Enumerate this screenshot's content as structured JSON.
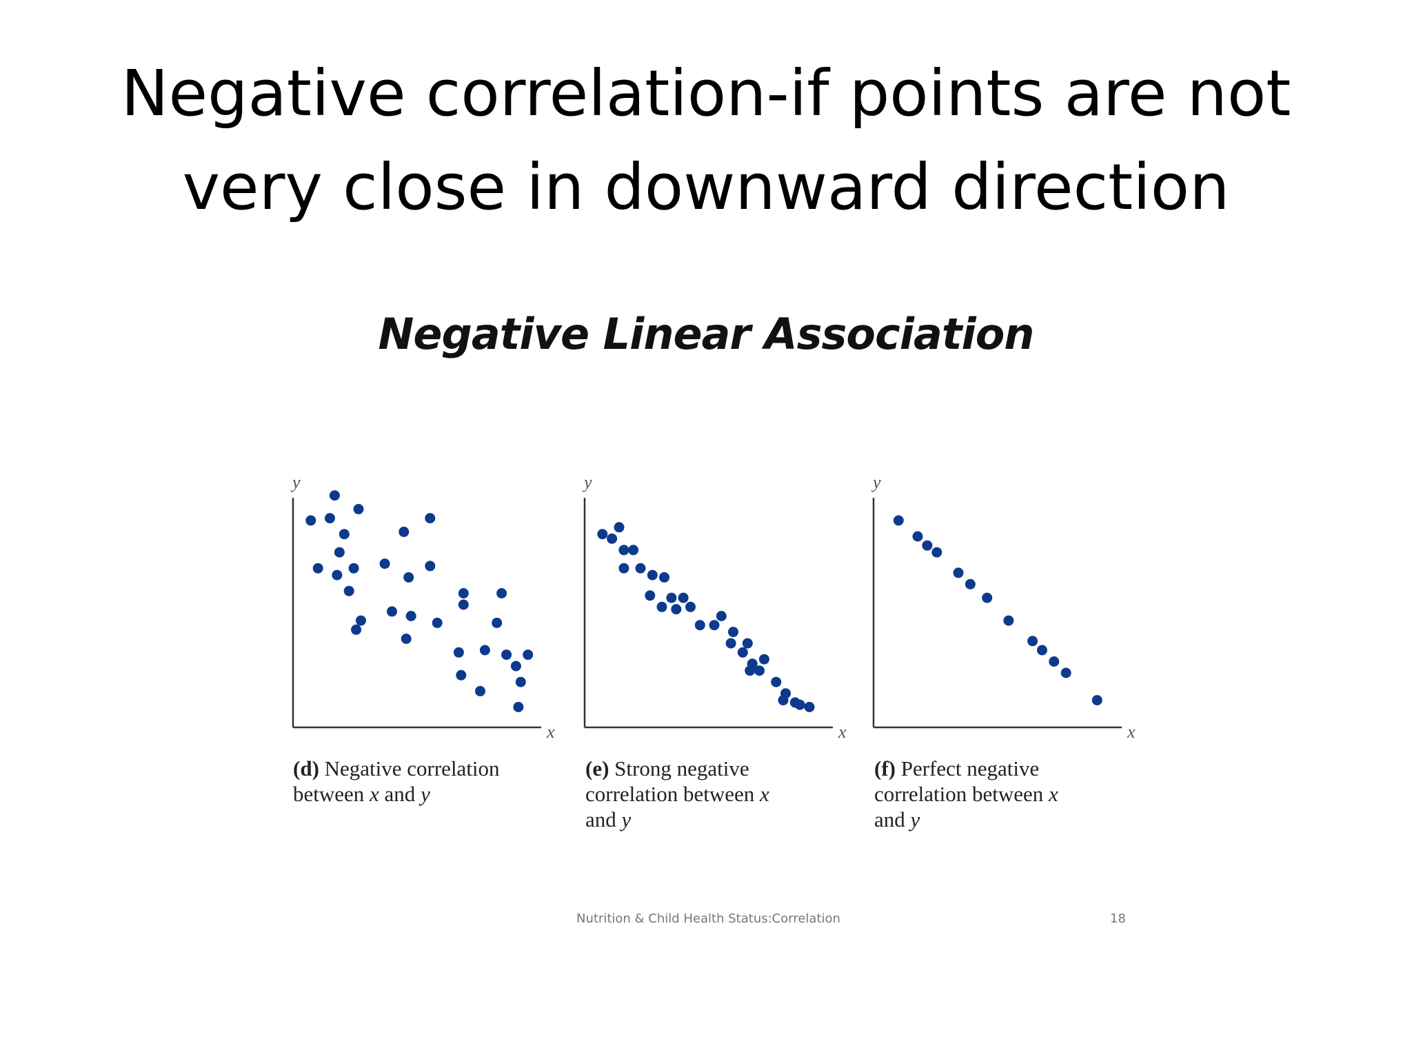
{
  "slide": {
    "title_line1": "Negative correlation-if points are not",
    "title_line2": "very close in downward direction",
    "figure_heading": "Negative Linear Association",
    "footer_left": "Nutrition & Child Health Status:Correlation",
    "footer_right": "18"
  },
  "colors": {
    "point": "#0d3a8c",
    "axis": "#333333",
    "axis_label": "#555555"
  },
  "chart_data": [
    {
      "type": "scatter",
      "panel": "d",
      "caption_tag": "(d)",
      "caption_pre": "Negative correlation between",
      "caption_x": "x",
      "caption_and": "and",
      "caption_y": "y",
      "xlabel": "x",
      "ylabel": "y",
      "xlim": [
        0,
        100
      ],
      "ylim": [
        0,
        100
      ],
      "points": [
        [
          4,
          87
        ],
        [
          12,
          88
        ],
        [
          14,
          98
        ],
        [
          18,
          81
        ],
        [
          24,
          92
        ],
        [
          16,
          73
        ],
        [
          7,
          66
        ],
        [
          15,
          63
        ],
        [
          22,
          66
        ],
        [
          20,
          56
        ],
        [
          25,
          43
        ],
        [
          23,
          39
        ],
        [
          35,
          68
        ],
        [
          38,
          47
        ],
        [
          43,
          82
        ],
        [
          45,
          62
        ],
        [
          44,
          35
        ],
        [
          46,
          45
        ],
        [
          54,
          88
        ],
        [
          54,
          67
        ],
        [
          57,
          42
        ],
        [
          68,
          55
        ],
        [
          68,
          50
        ],
        [
          66,
          29
        ],
        [
          67,
          19
        ],
        [
          77,
          30
        ],
        [
          75,
          12
        ],
        [
          84,
          55
        ],
        [
          82,
          42
        ],
        [
          86,
          28
        ],
        [
          90,
          23
        ],
        [
          92,
          16
        ],
        [
          95,
          28
        ],
        [
          91,
          5
        ]
      ]
    },
    {
      "type": "scatter",
      "panel": "e",
      "caption_tag": "(e)",
      "caption_pre": "Strong negative correlation between",
      "caption_x": "x",
      "caption_and": "and",
      "caption_y": "y",
      "xlabel": "x",
      "ylabel": "y",
      "xlim": [
        0,
        100
      ],
      "ylim": [
        0,
        100
      ],
      "points": [
        [
          4,
          81
        ],
        [
          8,
          79
        ],
        [
          11,
          84
        ],
        [
          13,
          74
        ],
        [
          17,
          74
        ],
        [
          13,
          66
        ],
        [
          20,
          66
        ],
        [
          25,
          63
        ],
        [
          30,
          62
        ],
        [
          24,
          54
        ],
        [
          29,
          49
        ],
        [
          33,
          53
        ],
        [
          35,
          48
        ],
        [
          38,
          53
        ],
        [
          41,
          49
        ],
        [
          45,
          41
        ],
        [
          51,
          41
        ],
        [
          54,
          45
        ],
        [
          59,
          38
        ],
        [
          58,
          33
        ],
        [
          65,
          33
        ],
        [
          63,
          29
        ],
        [
          67,
          24
        ],
        [
          66,
          21
        ],
        [
          72,
          26
        ],
        [
          70,
          21
        ],
        [
          77,
          16
        ],
        [
          81,
          11
        ],
        [
          80,
          8
        ],
        [
          85,
          7
        ],
        [
          87,
          6
        ],
        [
          91,
          5
        ]
      ]
    },
    {
      "type": "scatter",
      "panel": "f",
      "caption_tag": "(f)",
      "caption_pre": "Perfect negative correlation between",
      "caption_x": "x",
      "caption_and": "and",
      "caption_y": "y",
      "xlabel": "x",
      "ylabel": "y",
      "xlim": [
        0,
        100
      ],
      "ylim": [
        0,
        100
      ],
      "points": [
        [
          7,
          87
        ],
        [
          15,
          80
        ],
        [
          19,
          76
        ],
        [
          23,
          73
        ],
        [
          32,
          64
        ],
        [
          37,
          59
        ],
        [
          44,
          53
        ],
        [
          53,
          43
        ],
        [
          63,
          34
        ],
        [
          67,
          30
        ],
        [
          72,
          25
        ],
        [
          77,
          20
        ],
        [
          90,
          8
        ]
      ]
    }
  ]
}
